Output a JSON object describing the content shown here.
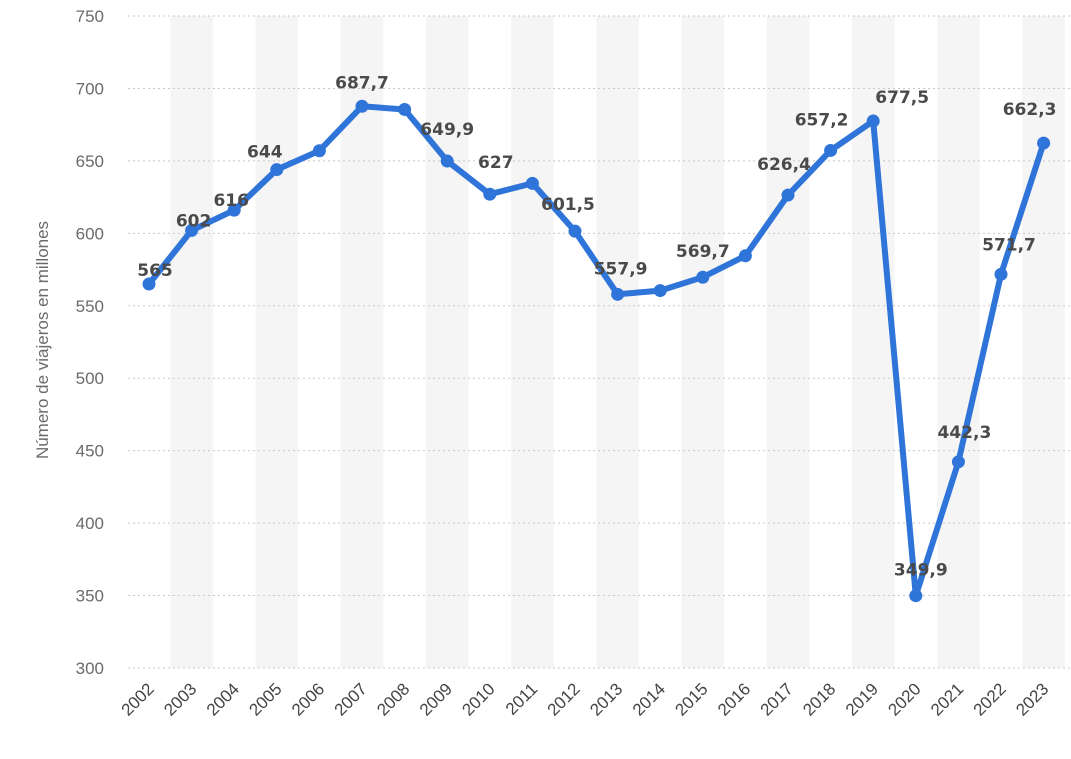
{
  "chart_data": {
    "type": "line",
    "title": "",
    "xlabel": "",
    "ylabel": "Número de viajeros en millones",
    "categories": [
      "2002",
      "2003",
      "2004",
      "2005",
      "2006",
      "2007",
      "2008",
      "2009",
      "2010",
      "2011",
      "2012",
      "2013",
      "2014",
      "2015",
      "2016",
      "2017",
      "2018",
      "2019",
      "2020",
      "2021",
      "2022",
      "2023"
    ],
    "series": [
      {
        "values": [
          565,
          602,
          616,
          644,
          657,
          687.7,
          685.5,
          649.9,
          627,
          634.5,
          601.5,
          557.9,
          560.5,
          569.7,
          584.5,
          626.4,
          657.2,
          677.5,
          349.9,
          442.3,
          571.7,
          662.3
        ]
      }
    ],
    "data_labels": [
      "565",
      "602",
      "616",
      "644",
      "",
      "687,7",
      "",
      "649,9",
      "627",
      "",
      "601,5",
      "557,9",
      "",
      "569,7",
      "",
      "626,4",
      "657,2",
      "677,5",
      "349,9",
      "442,3",
      "571,7",
      "662,3"
    ],
    "yticks": [
      300,
      350,
      400,
      450,
      500,
      550,
      600,
      650,
      700,
      750
    ],
    "ytick_labels": [
      "300",
      "350",
      "400",
      "450",
      "500",
      "550",
      "600",
      "650",
      "700",
      "750"
    ],
    "ylim": [
      300,
      750
    ],
    "grid": true,
    "legend": "none",
    "colors": {
      "line": "#2f74d9",
      "grid": "#c8c8c8",
      "band": "#f5f5f5"
    }
  }
}
